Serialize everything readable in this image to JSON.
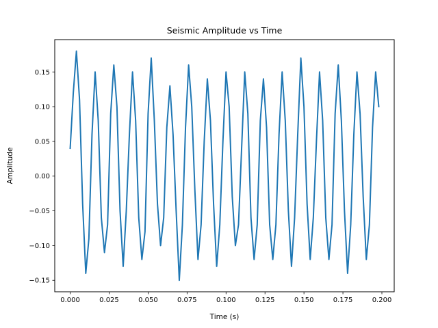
{
  "chart_data": {
    "type": "line",
    "title": "Seismic Amplitude vs Time",
    "xlabel": "Time (s)",
    "ylabel": "Amplitude",
    "xlim": [
      -0.0099,
      0.2079
    ],
    "ylim": [
      -0.1665,
      0.1965
    ],
    "grid": false,
    "xticks": [
      0.0,
      0.025,
      0.05,
      0.075,
      0.1,
      0.125,
      0.15,
      0.175,
      0.2
    ],
    "xtick_labels": [
      "0.000",
      "0.025",
      "0.050",
      "0.075",
      "0.100",
      "0.125",
      "0.150",
      "0.175",
      "0.200"
    ],
    "yticks": [
      -0.15,
      -0.1,
      -0.05,
      0.0,
      0.05,
      0.1,
      0.15
    ],
    "ytick_labels": [
      "−0.15",
      "−0.10",
      "−0.05",
      "0.00",
      "0.05",
      "0.10",
      "0.15"
    ],
    "series": [
      {
        "color": "#1f77b4",
        "x": [
          0.0,
          0.002,
          0.004,
          0.006,
          0.008,
          0.01,
          0.012,
          0.014,
          0.016,
          0.018,
          0.02,
          0.022,
          0.024,
          0.026,
          0.028,
          0.03,
          0.032,
          0.034,
          0.036,
          0.038,
          0.04,
          0.042,
          0.044,
          0.046,
          0.048,
          0.05,
          0.052,
          0.054,
          0.056,
          0.058,
          0.06,
          0.062,
          0.064,
          0.066,
          0.068,
          0.07,
          0.072,
          0.074,
          0.076,
          0.078,
          0.08,
          0.082,
          0.084,
          0.086,
          0.088,
          0.09,
          0.092,
          0.094,
          0.096,
          0.098,
          0.1,
          0.102,
          0.104,
          0.106,
          0.108,
          0.11,
          0.112,
          0.114,
          0.116,
          0.118,
          0.12,
          0.122,
          0.124,
          0.126,
          0.128,
          0.13,
          0.132,
          0.134,
          0.136,
          0.138,
          0.14,
          0.142,
          0.144,
          0.146,
          0.148,
          0.15,
          0.152,
          0.154,
          0.156,
          0.158,
          0.16,
          0.162,
          0.164,
          0.166,
          0.168,
          0.17,
          0.172,
          0.174,
          0.176,
          0.178,
          0.18,
          0.182,
          0.184,
          0.186,
          0.188,
          0.19,
          0.192,
          0.194,
          0.196,
          0.198
        ],
        "y": [
          0.04,
          0.12,
          0.18,
          0.11,
          -0.04,
          -0.14,
          -0.09,
          0.06,
          0.15,
          0.08,
          -0.06,
          -0.11,
          -0.07,
          0.09,
          0.16,
          0.1,
          -0.05,
          -0.13,
          -0.05,
          0.06,
          0.15,
          0.08,
          -0.06,
          -0.12,
          -0.08,
          0.09,
          0.17,
          0.08,
          -0.04,
          -0.1,
          -0.06,
          0.07,
          0.13,
          0.06,
          -0.05,
          -0.15,
          -0.07,
          0.07,
          0.16,
          0.1,
          -0.02,
          -0.12,
          -0.07,
          0.05,
          0.14,
          0.08,
          -0.04,
          -0.13,
          -0.07,
          0.05,
          0.15,
          0.1,
          -0.03,
          -0.1,
          -0.07,
          0.04,
          0.15,
          0.09,
          -0.06,
          -0.12,
          -0.07,
          0.08,
          0.14,
          0.07,
          -0.07,
          -0.12,
          -0.07,
          0.06,
          0.15,
          0.08,
          -0.05,
          -0.13,
          -0.06,
          0.06,
          0.17,
          0.1,
          -0.04,
          -0.12,
          -0.06,
          0.05,
          0.15,
          0.08,
          -0.06,
          -0.12,
          -0.07,
          0.09,
          0.16,
          0.08,
          -0.05,
          -0.14,
          -0.07,
          0.06,
          0.15,
          0.09,
          -0.03,
          -0.12,
          -0.07,
          0.07,
          0.15,
          0.1
        ]
      }
    ]
  }
}
